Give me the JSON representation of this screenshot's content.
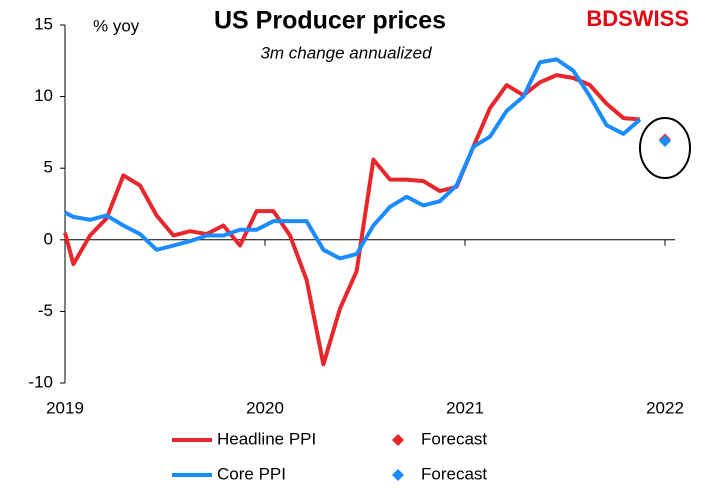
{
  "chart_data": {
    "type": "line",
    "title": "US Producer prices",
    "subtitle": "3m change annualized",
    "y_label": "% yoy",
    "logo": "BDSWISS",
    "x": [
      2019,
      2019.042,
      2019.125,
      2019.208,
      2019.292,
      2019.375,
      2019.458,
      2019.542,
      2019.625,
      2019.708,
      2019.792,
      2019.875,
      2019.958,
      2020.042,
      2020.125,
      2020.208,
      2020.292,
      2020.375,
      2020.458,
      2020.542,
      2020.625,
      2020.708,
      2020.792,
      2020.875,
      2020.958,
      2021.042,
      2021.125,
      2021.208,
      2021.292,
      2021.375,
      2021.458,
      2021.542,
      2021.625,
      2021.708,
      2021.792,
      2021.875
    ],
    "series": [
      {
        "name": "Headline PPI",
        "color": "#e8262b",
        "values": [
          0.5,
          -1.7,
          0.3,
          1.5,
          4.5,
          3.8,
          1.7,
          0.3,
          0.6,
          0.4,
          1.0,
          -0.4,
          2.0,
          2.0,
          0.3,
          -2.8,
          -8.7,
          -4.8,
          -2.2,
          5.6,
          4.2,
          4.2,
          4.1,
          3.4,
          3.7,
          6.5,
          9.2,
          10.8,
          10.1,
          11.0,
          11.5,
          11.3,
          10.8,
          9.5,
          8.5,
          8.4
        ]
      },
      {
        "name": "Forecast",
        "color": "#e8262b",
        "marker": "diamond",
        "x": [
          2022
        ],
        "values": [
          7.0
        ]
      },
      {
        "name": "Core PPI",
        "color": "#1a8cff",
        "values": [
          1.9,
          1.6,
          1.4,
          1.7,
          1.0,
          0.4,
          -0.7,
          -0.4,
          -0.1,
          0.3,
          0.3,
          0.7,
          0.7,
          1.3,
          1.3,
          1.3,
          -0.7,
          -1.3,
          -1.0,
          1.0,
          2.3,
          3.0,
          2.4,
          2.7,
          3.8,
          6.5,
          7.2,
          9.0,
          10.0,
          12.4,
          12.6,
          11.8,
          10.0,
          8.0,
          7.4,
          8.4
        ]
      },
      {
        "name": "Forecast",
        "color": "#1a8cff",
        "marker": "diamond",
        "x": [
          2022
        ],
        "values": [
          6.9
        ]
      }
    ],
    "xlim": [
      2019,
      2022
    ],
    "xticks": [
      2019,
      2020,
      2021,
      2022
    ],
    "ylim": [
      -10,
      15
    ],
    "yticks": [
      -10,
      -5,
      0,
      5,
      10,
      15
    ]
  }
}
